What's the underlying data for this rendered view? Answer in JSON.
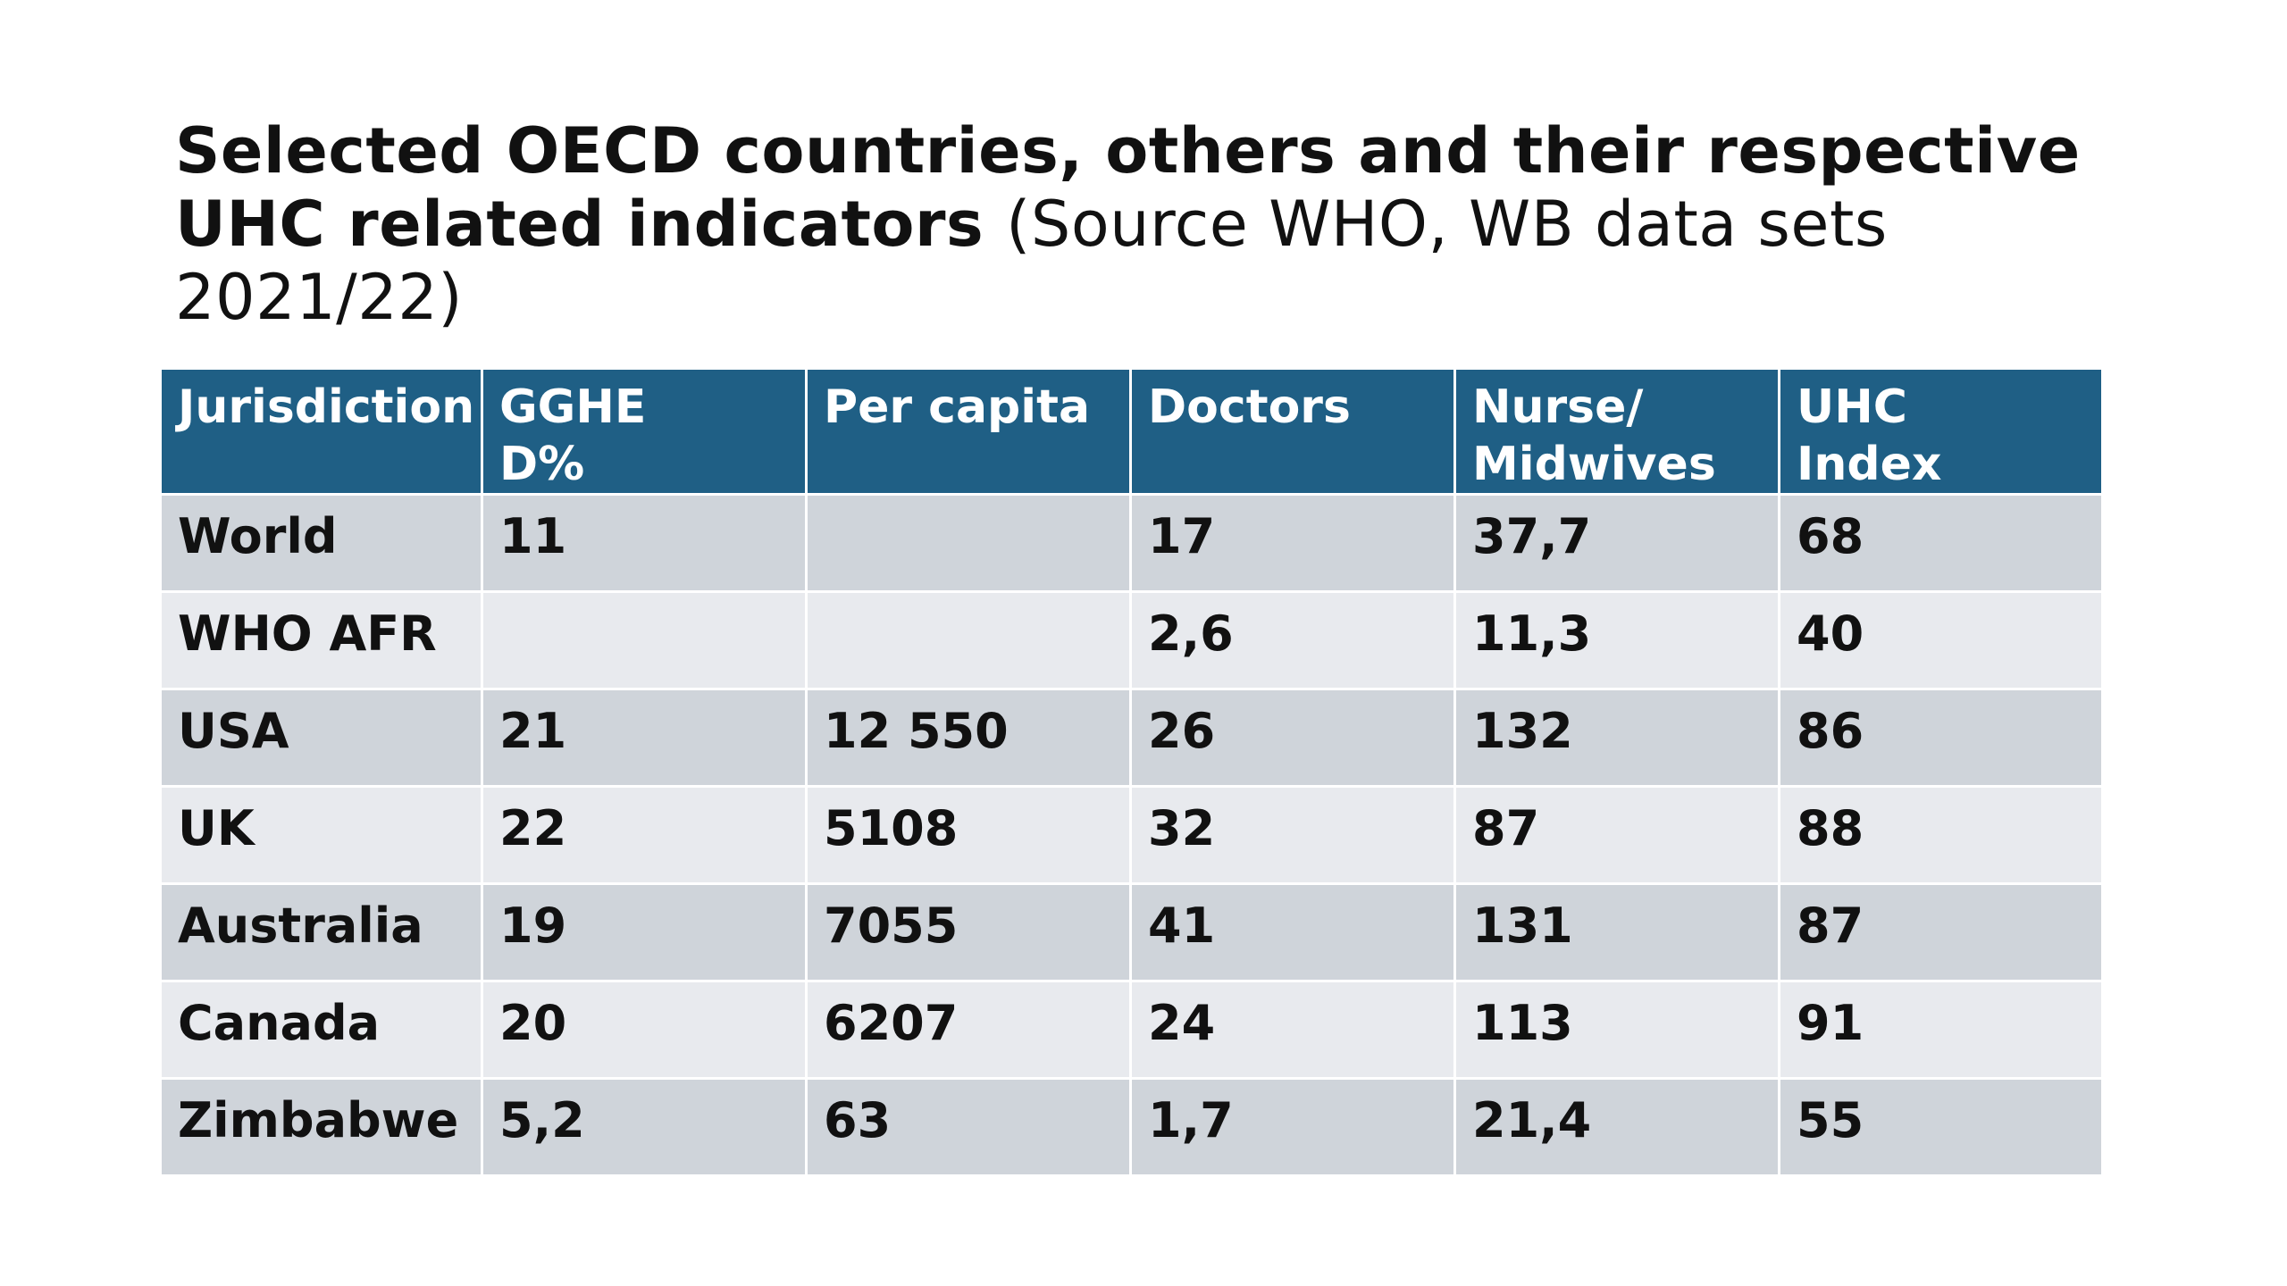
{
  "title": {
    "bold": "Selected OECD countries, others and their respective UHC related indicators",
    "normal": "(Source WHO, WB data sets 2021/22)"
  },
  "table": {
    "headers": [
      "Jurisdiction",
      "GGHE D%",
      "Per capita",
      "Doctors",
      "Nurse/ Midwives",
      "UHC Index"
    ],
    "rows": [
      [
        "World",
        "11",
        "",
        "17",
        "37,7",
        "68"
      ],
      [
        "WHO AFR",
        "",
        "",
        "2,6",
        "11,3",
        "40"
      ],
      [
        "USA",
        "21",
        "12 550",
        "26",
        "132",
        "86"
      ],
      [
        "UK",
        "22",
        "5108",
        "32",
        "87",
        "88"
      ],
      [
        "Australia",
        "19",
        "7055",
        "41",
        "131",
        "87"
      ],
      [
        "Canada",
        "20",
        "6207",
        "24",
        "113",
        "91"
      ],
      [
        "Zimbabwe",
        "5,2",
        "63",
        "1,7",
        "21,4",
        "55"
      ]
    ]
  },
  "colors": {
    "header_background": "#1f5f85",
    "header_text": "#ffffff",
    "row_dark": "#cfd4da",
    "row_light": "#e8eaee"
  }
}
